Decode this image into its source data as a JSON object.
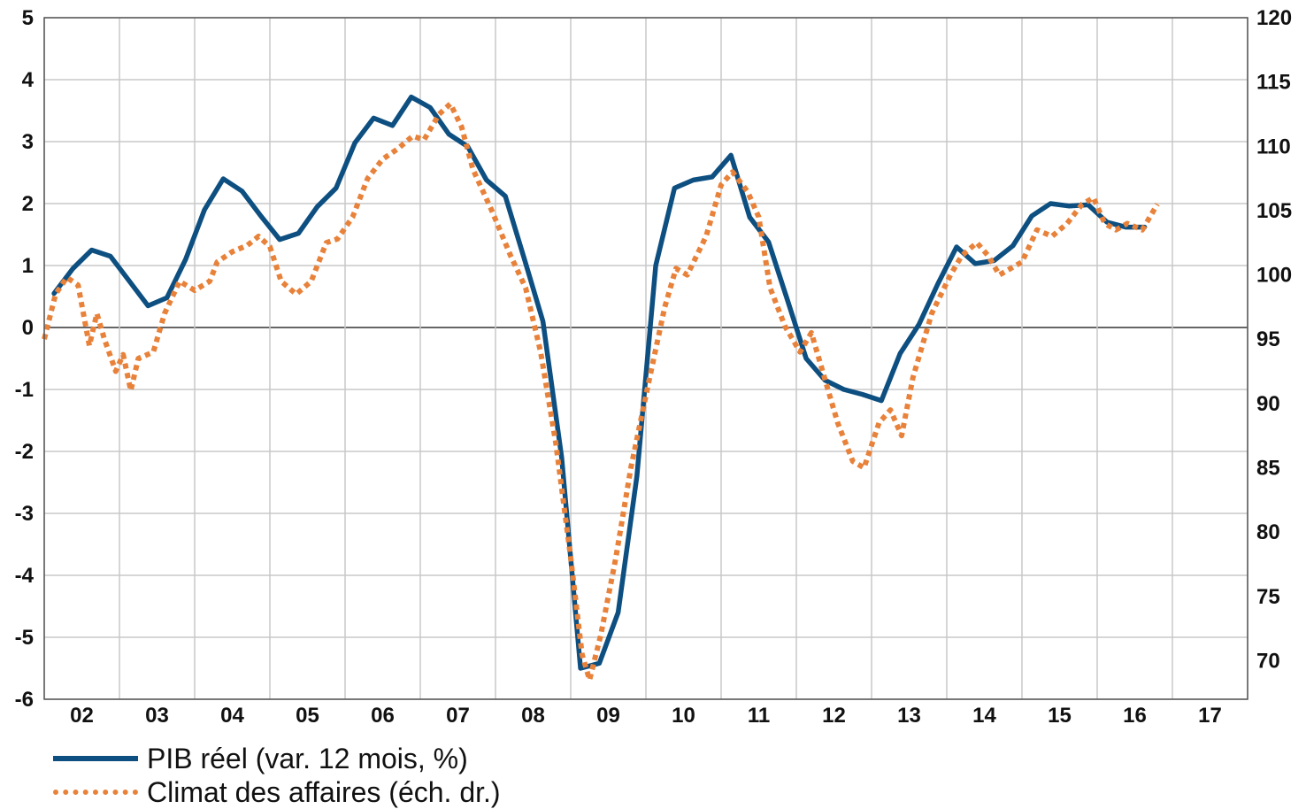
{
  "chart_data": {
    "type": "line",
    "title": "",
    "xlabel": "",
    "ylabel_left": "",
    "ylabel_right": "",
    "x_tick_labels": [
      "02",
      "03",
      "04",
      "05",
      "06",
      "07",
      "08",
      "09",
      "10",
      "11",
      "12",
      "13",
      "14",
      "15",
      "16",
      "17"
    ],
    "x_range": [
      2001.5,
      2017.5
    ],
    "ylim_left": [
      -6,
      5
    ],
    "y_ticks_left": [
      5,
      4,
      3,
      2,
      1,
      0,
      -1,
      -2,
      -3,
      -4,
      -5,
      -6
    ],
    "ylim_right": [
      67,
      120
    ],
    "y_ticks_right": [
      120,
      115,
      110,
      105,
      100,
      95,
      90,
      85,
      80,
      75,
      70
    ],
    "grid": true,
    "legend_position": "bottom-left",
    "series": [
      {
        "name": "PIB réel (var. 12 mois, %)",
        "axis": "left",
        "style": "solid",
        "color": "#0d4f80",
        "points": [
          [
            2001.63,
            0.55
          ],
          [
            2001.88,
            0.95
          ],
          [
            2002.13,
            1.25
          ],
          [
            2002.38,
            1.15
          ],
          [
            2002.63,
            0.75
          ],
          [
            2002.88,
            0.35
          ],
          [
            2003.13,
            0.48
          ],
          [
            2003.38,
            1.1
          ],
          [
            2003.63,
            1.9
          ],
          [
            2003.88,
            2.4
          ],
          [
            2004.13,
            2.2
          ],
          [
            2004.38,
            1.8
          ],
          [
            2004.63,
            1.42
          ],
          [
            2004.88,
            1.52
          ],
          [
            2005.13,
            1.95
          ],
          [
            2005.38,
            2.25
          ],
          [
            2005.63,
            2.98
          ],
          [
            2005.88,
            3.38
          ],
          [
            2006.13,
            3.26
          ],
          [
            2006.38,
            3.72
          ],
          [
            2006.63,
            3.55
          ],
          [
            2006.88,
            3.12
          ],
          [
            2007.13,
            2.92
          ],
          [
            2007.38,
            2.38
          ],
          [
            2007.63,
            2.12
          ],
          [
            2007.88,
            1.12
          ],
          [
            2008.13,
            0.1
          ],
          [
            2008.38,
            -2.1
          ],
          [
            2008.63,
            -5.5
          ],
          [
            2008.88,
            -5.42
          ],
          [
            2009.13,
            -4.6
          ],
          [
            2009.38,
            -2.4
          ],
          [
            2009.63,
            1.0
          ],
          [
            2009.88,
            2.25
          ],
          [
            2010.13,
            2.38
          ],
          [
            2010.38,
            2.43
          ],
          [
            2010.63,
            2.78
          ],
          [
            2010.88,
            1.78
          ],
          [
            2011.13,
            1.38
          ],
          [
            2011.38,
            0.45
          ],
          [
            2011.63,
            -0.5
          ],
          [
            2011.88,
            -0.85
          ],
          [
            2012.13,
            -1.0
          ],
          [
            2012.38,
            -1.08
          ],
          [
            2012.63,
            -1.18
          ],
          [
            2012.88,
            -0.42
          ],
          [
            2013.13,
            0.05
          ],
          [
            2013.38,
            0.7
          ],
          [
            2013.63,
            1.3
          ],
          [
            2013.88,
            1.03
          ],
          [
            2014.13,
            1.08
          ],
          [
            2014.38,
            1.32
          ],
          [
            2014.63,
            1.8
          ],
          [
            2014.88,
            2.0
          ],
          [
            2015.13,
            1.96
          ],
          [
            2015.38,
            1.98
          ],
          [
            2015.63,
            1.7
          ],
          [
            2015.88,
            1.62
          ],
          [
            2016.13,
            1.62
          ]
        ]
      },
      {
        "name": "Climat des affaires (éch. dr.)",
        "axis": "right",
        "style": "dotted",
        "color": "#e8823a",
        "points": [
          [
            2001.5,
            95.0
          ],
          [
            2001.65,
            98.5
          ],
          [
            2001.8,
            99.8
          ],
          [
            2001.95,
            99.2
          ],
          [
            2002.1,
            94.5
          ],
          [
            2002.2,
            97.0
          ],
          [
            2002.3,
            95.0
          ],
          [
            2002.45,
            92.5
          ],
          [
            2002.55,
            93.8
          ],
          [
            2002.65,
            91.0
          ],
          [
            2002.75,
            93.5
          ],
          [
            2002.95,
            94.0
          ],
          [
            2003.1,
            97.0
          ],
          [
            2003.3,
            99.5
          ],
          [
            2003.5,
            98.8
          ],
          [
            2003.7,
            99.5
          ],
          [
            2003.8,
            101.0
          ],
          [
            2004.0,
            101.8
          ],
          [
            2004.2,
            102.3
          ],
          [
            2004.35,
            103.0
          ],
          [
            2004.5,
            102.2
          ],
          [
            2004.65,
            99.5
          ],
          [
            2004.85,
            98.5
          ],
          [
            2005.05,
            99.5
          ],
          [
            2005.25,
            102.5
          ],
          [
            2005.4,
            102.8
          ],
          [
            2005.6,
            104.5
          ],
          [
            2005.8,
            107.5
          ],
          [
            2006.0,
            109.0
          ],
          [
            2006.2,
            109.8
          ],
          [
            2006.4,
            110.8
          ],
          [
            2006.55,
            110.5
          ],
          [
            2006.75,
            112.5
          ],
          [
            2006.9,
            113.3
          ],
          [
            2007.05,
            111.5
          ],
          [
            2007.2,
            108.2
          ],
          [
            2007.45,
            105.0
          ],
          [
            2007.7,
            101.5
          ],
          [
            2007.9,
            99.0
          ],
          [
            2008.1,
            94.0
          ],
          [
            2008.3,
            87.0
          ],
          [
            2008.5,
            78.0
          ],
          [
            2008.65,
            70.5
          ],
          [
            2008.75,
            68.5
          ],
          [
            2008.9,
            72.0
          ],
          [
            2009.1,
            78.0
          ],
          [
            2009.3,
            85.0
          ],
          [
            2009.55,
            92.0
          ],
          [
            2009.75,
            97.5
          ],
          [
            2009.9,
            100.5
          ],
          [
            2010.05,
            100.0
          ],
          [
            2010.3,
            103.0
          ],
          [
            2010.5,
            107.0
          ],
          [
            2010.65,
            108.0
          ],
          [
            2010.85,
            106.5
          ],
          [
            2011.0,
            104.5
          ],
          [
            2011.15,
            99.0
          ],
          [
            2011.35,
            96.0
          ],
          [
            2011.55,
            94.0
          ],
          [
            2011.7,
            95.5
          ],
          [
            2011.85,
            92.5
          ],
          [
            2012.05,
            88.5
          ],
          [
            2012.25,
            85.5
          ],
          [
            2012.4,
            85.0
          ],
          [
            2012.6,
            88.5
          ],
          [
            2012.75,
            89.5
          ],
          [
            2012.9,
            87.5
          ],
          [
            2013.05,
            92.0
          ],
          [
            2013.3,
            97.0
          ],
          [
            2013.55,
            100.0
          ],
          [
            2013.7,
            101.5
          ],
          [
            2013.9,
            102.5
          ],
          [
            2014.05,
            101.5
          ],
          [
            2014.2,
            100.0
          ],
          [
            2014.35,
            100.5
          ],
          [
            2014.5,
            101.0
          ],
          [
            2014.7,
            103.5
          ],
          [
            2014.9,
            103.0
          ],
          [
            2015.1,
            104.0
          ],
          [
            2015.3,
            105.5
          ],
          [
            2015.45,
            106.0
          ],
          [
            2015.6,
            104.0
          ],
          [
            2015.75,
            103.5
          ],
          [
            2015.9,
            104.0
          ],
          [
            2016.1,
            103.5
          ],
          [
            2016.3,
            105.5
          ]
        ]
      }
    ]
  }
}
